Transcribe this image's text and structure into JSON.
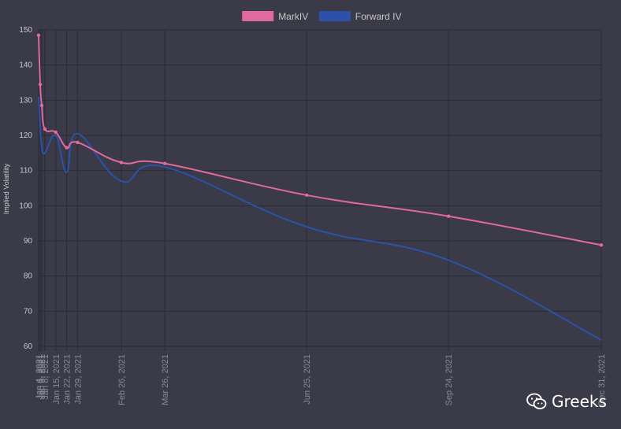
{
  "chart_data": {
    "type": "line",
    "title": "",
    "xlabel": "",
    "ylabel": "Implied Volatility",
    "ylim": [
      60,
      150
    ],
    "yticks": [
      60,
      70,
      80,
      90,
      100,
      110,
      120,
      130,
      140,
      150
    ],
    "grid": true,
    "legend_position": "top-center",
    "x_axis_type": "date",
    "x": [
      "2021-01-04",
      "2021-01-05",
      "2021-01-06",
      "2021-01-08",
      "2021-01-15",
      "2021-01-22",
      "2021-01-29",
      "2021-02-26",
      "2021-03-26",
      "2021-06-25",
      "2021-09-24",
      "2021-12-31"
    ],
    "tick_labels": [
      "Jan 4, 2021",
      "Jan 5, 2021",
      "Jan 6, 2021",
      "Jan 8, 2021",
      "Jan 15, 2021",
      "Jan 22, 2021",
      "Jan 29, 2021",
      "Feb 26, 2021",
      "Mar 26, 2021",
      "Jun 25, 2021",
      "Sep 24, 2021",
      "Dec 31, 2021"
    ],
    "series": [
      {
        "name": "MarkIV",
        "color": "#e0699e",
        "values": [
          148.5,
          134.5,
          128.5,
          121.8,
          120.9,
          116.5,
          118.0,
          112.3,
          112.0,
          103.0,
          97.0,
          88.8
        ]
      },
      {
        "name": "Forward IV",
        "color": "#2b52a8",
        "values": [
          131.0,
          123.0,
          117.0,
          115.0,
          120.0,
          109.5,
          120.5,
          107.0,
          111.0,
          94.0,
          84.5,
          61.8
        ]
      }
    ]
  },
  "watermark": {
    "text": "Greeks",
    "icon": "wechat-icon"
  },
  "colors": {
    "background": "#3a3a48",
    "grid": "#2b2b36",
    "text": "#c8c8c8"
  }
}
